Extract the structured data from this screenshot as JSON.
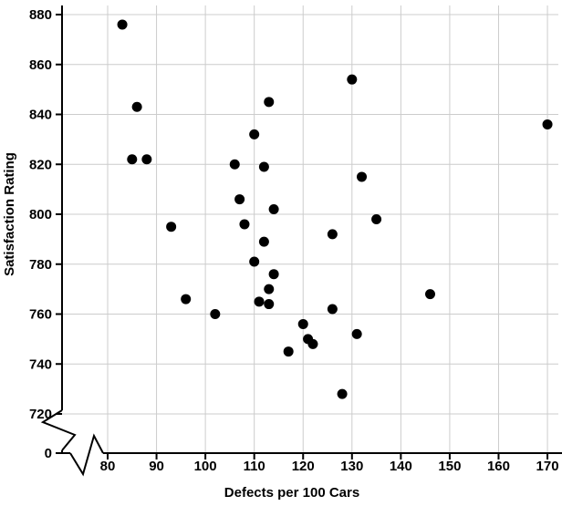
{
  "chart_data": {
    "type": "scatter",
    "title": "",
    "xlabel": "Defects per 100 Cars",
    "ylabel": "Satisfaction Rating",
    "x_ticks": [
      80,
      90,
      100,
      110,
      120,
      130,
      140,
      150,
      160,
      170
    ],
    "y_ticks": [
      720,
      740,
      760,
      780,
      800,
      820,
      840,
      860,
      880
    ],
    "y_origin_label": "0",
    "xlim": [
      80,
      170
    ],
    "ylim": [
      720,
      880
    ],
    "axis_break": true,
    "grid": true,
    "legend": false,
    "point_color": "#000000",
    "axis_color": "#000000",
    "grid_color": "#cccccc",
    "points": [
      {
        "x": 83,
        "y": 876
      },
      {
        "x": 85,
        "y": 822
      },
      {
        "x": 86,
        "y": 843
      },
      {
        "x": 88,
        "y": 822
      },
      {
        "x": 93,
        "y": 795
      },
      {
        "x": 96,
        "y": 766
      },
      {
        "x": 102,
        "y": 760
      },
      {
        "x": 106,
        "y": 820
      },
      {
        "x": 107,
        "y": 806
      },
      {
        "x": 108,
        "y": 796
      },
      {
        "x": 110,
        "y": 832
      },
      {
        "x": 110,
        "y": 781
      },
      {
        "x": 111,
        "y": 765
      },
      {
        "x": 112,
        "y": 819
      },
      {
        "x": 112,
        "y": 789
      },
      {
        "x": 113,
        "y": 845
      },
      {
        "x": 113,
        "y": 770
      },
      {
        "x": 113,
        "y": 764
      },
      {
        "x": 114,
        "y": 776
      },
      {
        "x": 114,
        "y": 802
      },
      {
        "x": 117,
        "y": 745
      },
      {
        "x": 120,
        "y": 756
      },
      {
        "x": 121,
        "y": 750
      },
      {
        "x": 122,
        "y": 748
      },
      {
        "x": 126,
        "y": 792
      },
      {
        "x": 126,
        "y": 762
      },
      {
        "x": 128,
        "y": 728
      },
      {
        "x": 130,
        "y": 854
      },
      {
        "x": 131,
        "y": 752
      },
      {
        "x": 132,
        "y": 815
      },
      {
        "x": 135,
        "y": 798
      },
      {
        "x": 146,
        "y": 768
      },
      {
        "x": 170,
        "y": 836
      }
    ]
  }
}
